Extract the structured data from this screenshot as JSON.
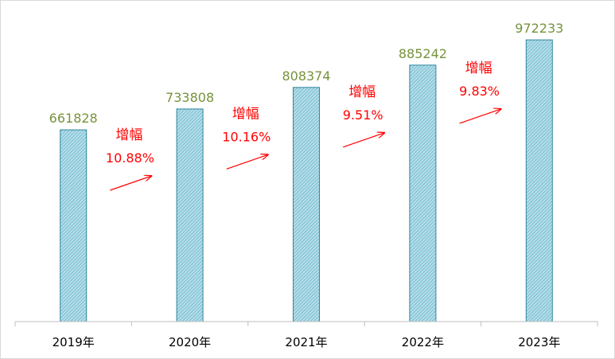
{
  "chart_data": {
    "type": "bar",
    "categories": [
      "2019年",
      "2020年",
      "2021年",
      "2022年",
      "2023年"
    ],
    "values": [
      661828,
      733808,
      808374,
      885242,
      972233
    ],
    "value_labels": [
      "661828",
      "733808",
      "808374",
      "885242",
      "972233"
    ],
    "title": "",
    "xlabel": "",
    "ylabel": "",
    "ylim": [
      0,
      1000000
    ],
    "grid": false,
    "legend": "none",
    "annotations": [
      {
        "between": [
          "2019年",
          "2020年"
        ],
        "label": "增幅",
        "value": "10.88%"
      },
      {
        "between": [
          "2020年",
          "2021年"
        ],
        "label": "增幅",
        "value": "10.16%"
      },
      {
        "between": [
          "2021年",
          "2022年"
        ],
        "label": "增幅",
        "value": "9.51%"
      },
      {
        "between": [
          "2022年",
          "2023年"
        ],
        "label": "增幅",
        "value": "9.83%"
      }
    ]
  },
  "colors": {
    "bar_fill": "#b7dde8",
    "bar_hatch": "#4bacc6",
    "bar_border": "#31859c",
    "value_label": "#77933c",
    "annotation": "#ff0000",
    "axis": "#bfbfbf",
    "category_text": "#000000"
  }
}
